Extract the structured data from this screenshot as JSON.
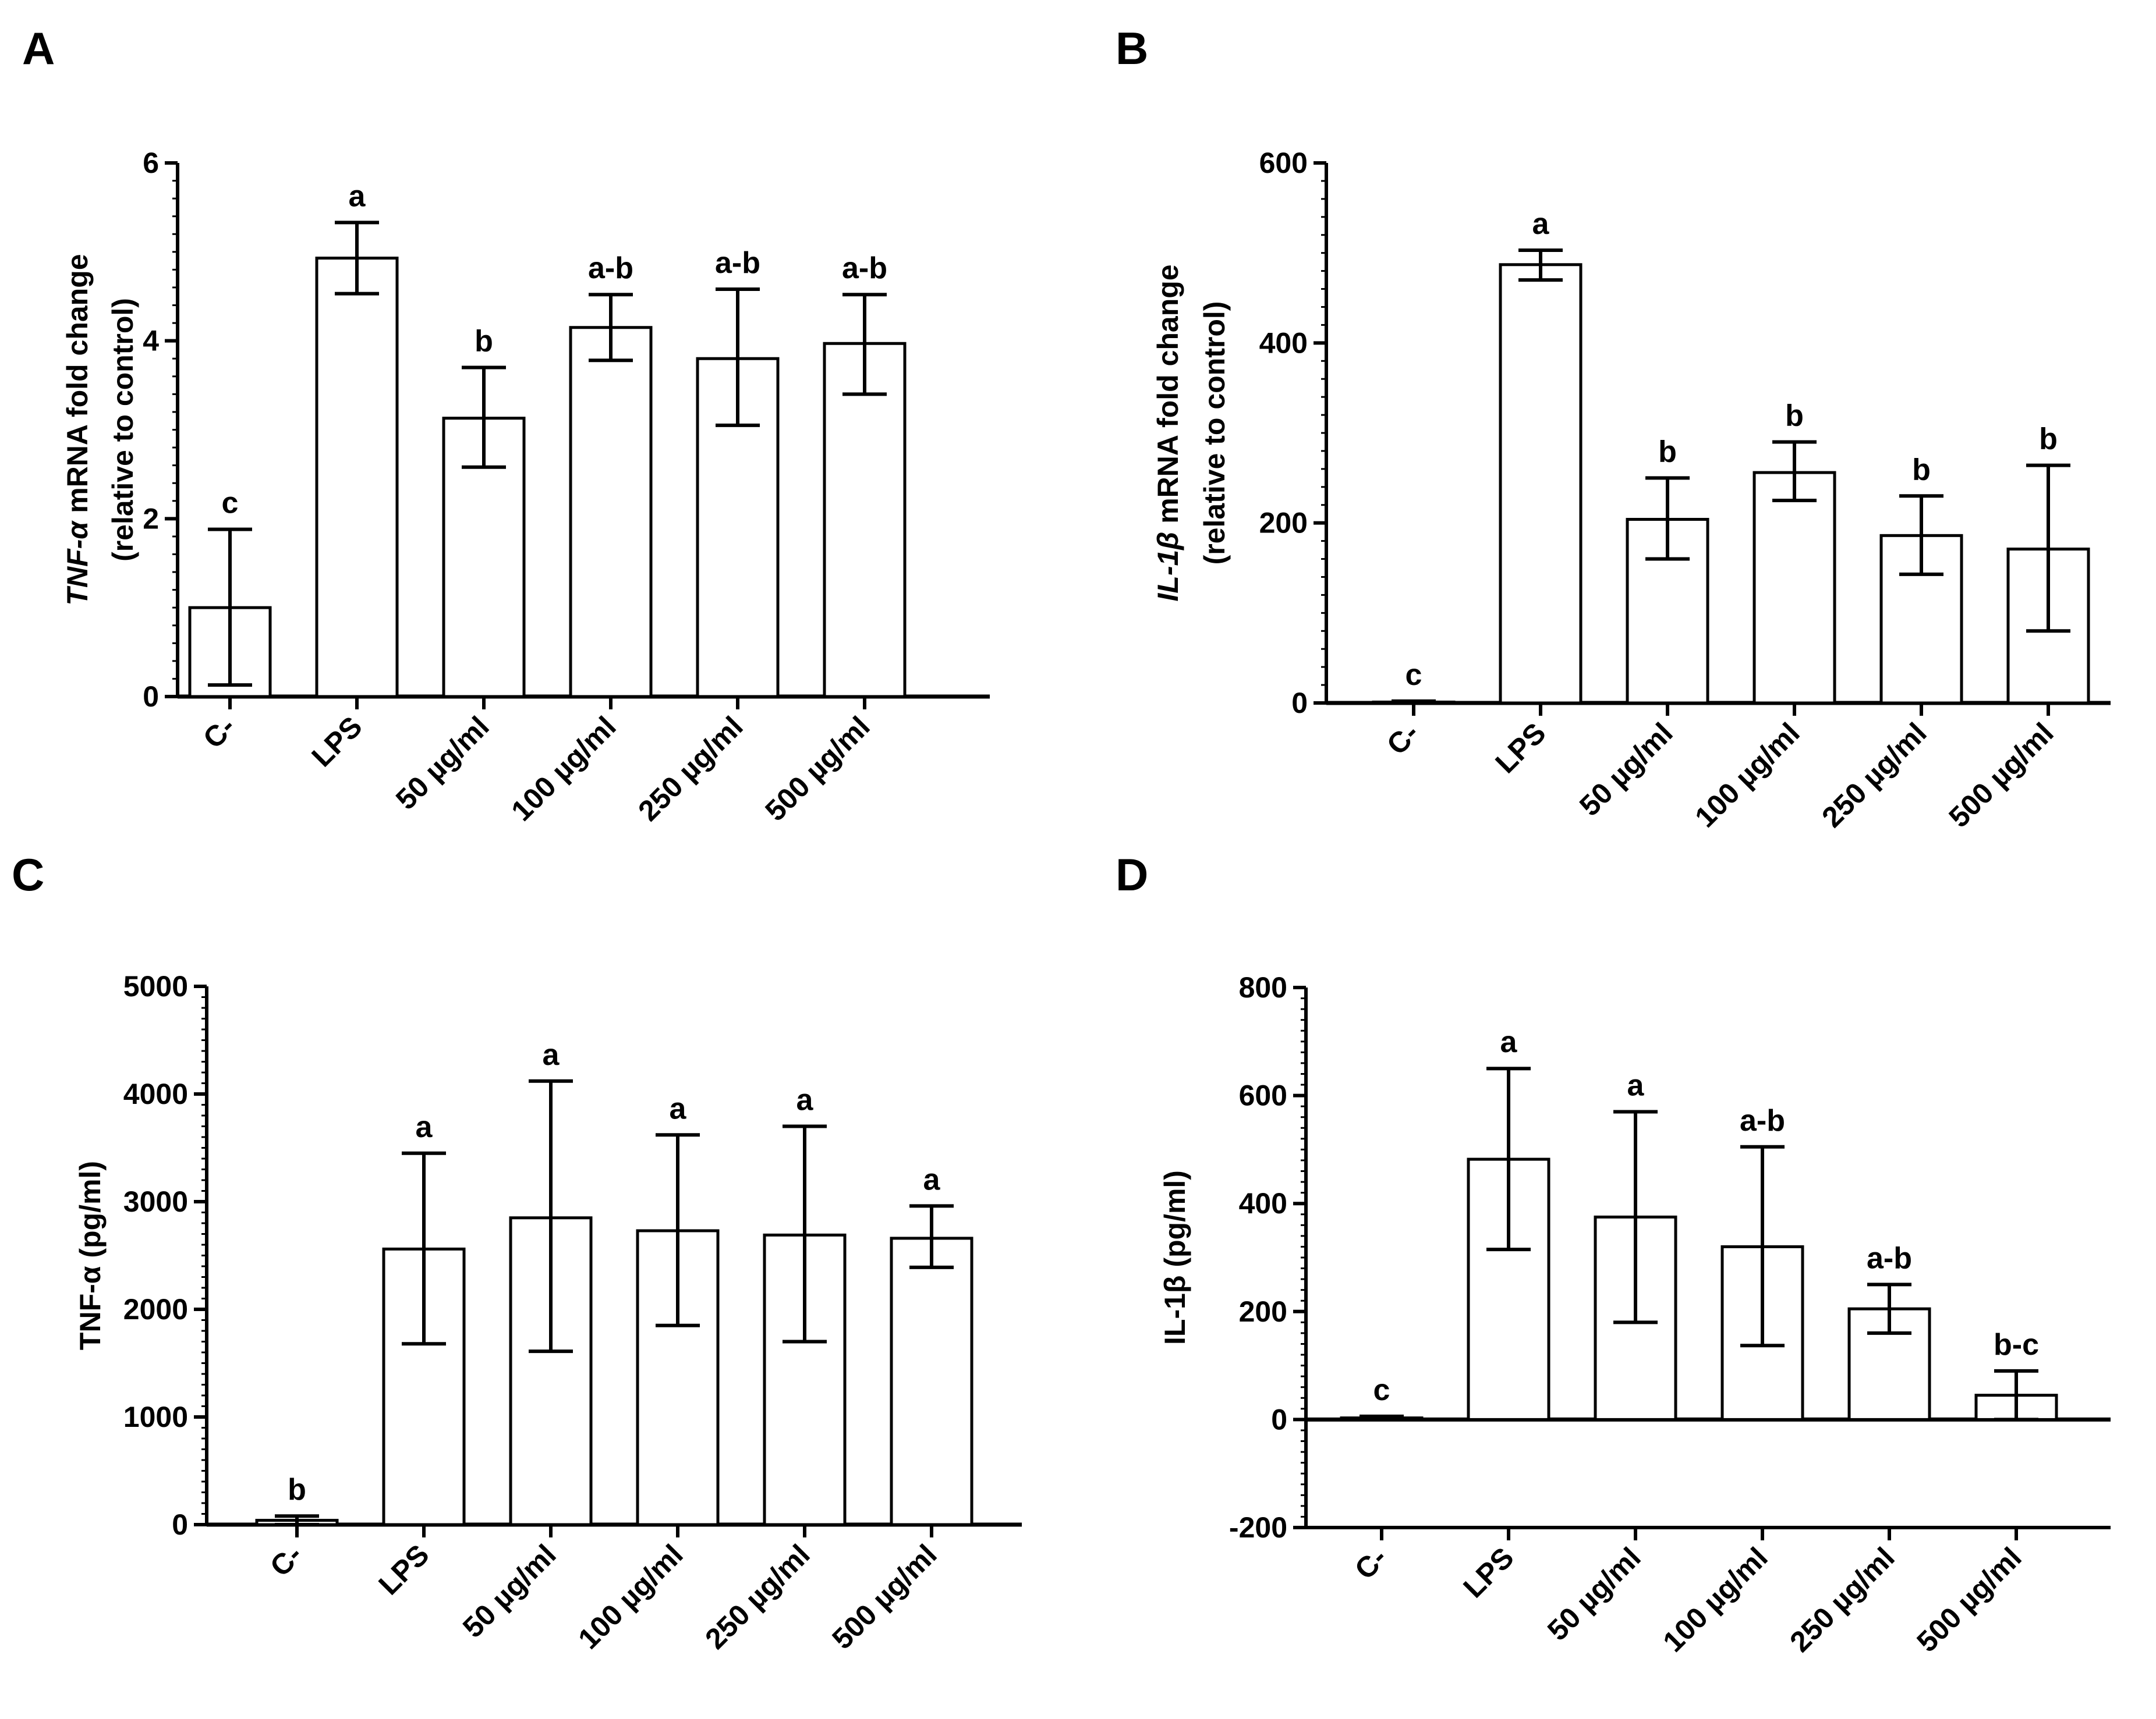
{
  "chart_data": [
    {
      "panel": "A",
      "type": "bar",
      "ylabel_line1": [
        {
          "text": "TNF-α",
          "italic": true
        },
        {
          "text": " mRNA fold change",
          "italic": false
        }
      ],
      "ylabel_line2": "(relative to control)",
      "ylim": [
        0,
        6
      ],
      "yticks": [
        0,
        2,
        4,
        6
      ],
      "categories": [
        "C-",
        "LPS",
        "50 µg/ml",
        "100 µg/ml",
        "250 µg/ml",
        "500 µg/ml"
      ],
      "values": [
        1.0,
        4.93,
        3.13,
        4.15,
        3.8,
        3.97
      ],
      "err_low": [
        0.13,
        4.53,
        2.58,
        3.78,
        3.05,
        3.4
      ],
      "err_high": [
        1.88,
        5.33,
        3.7,
        4.52,
        4.58,
        4.52
      ],
      "letters": [
        "c",
        "a",
        "b",
        "a-b",
        "a-b",
        "a-b"
      ]
    },
    {
      "panel": "B",
      "type": "bar",
      "ylabel_line1": [
        {
          "text": "IL-1β",
          "italic": true
        },
        {
          "text": " mRNA fold change",
          "italic": false
        }
      ],
      "ylabel_line2": "(relative to control)",
      "ylim": [
        0,
        600
      ],
      "yticks": [
        0,
        200,
        400,
        600
      ],
      "categories": [
        "C-",
        "LPS",
        "50 µg/ml",
        "100 µg/ml",
        "250 µg/ml",
        "500 µg/ml"
      ],
      "values": [
        1,
        487,
        204,
        256,
        186,
        171
      ],
      "err_low": [
        0,
        470,
        160,
        225,
        143,
        80
      ],
      "err_high": [
        2,
        503,
        250,
        290,
        230,
        264
      ],
      "letters": [
        "c",
        "a",
        "b",
        "b",
        "b",
        "b"
      ]
    },
    {
      "panel": "C",
      "type": "bar",
      "ylabel_line1": [
        {
          "text": "TNF-α (pg/ml)",
          "italic": false
        }
      ],
      "ylabel_line2": "",
      "ylim": [
        0,
        5000
      ],
      "yticks": [
        0,
        1000,
        2000,
        3000,
        4000,
        5000
      ],
      "categories": [
        "C-",
        "LPS",
        "50 µg/ml",
        "100 µg/ml",
        "250 µg/ml",
        "500 µg/ml"
      ],
      "values": [
        40,
        2560,
        2850,
        2730,
        2690,
        2660
      ],
      "err_low": [
        0,
        1680,
        1610,
        1850,
        1700,
        2390
      ],
      "err_high": [
        80,
        3450,
        4120,
        3620,
        3700,
        2960
      ],
      "letters": [
        "b",
        "a",
        "a",
        "a",
        "a",
        "a"
      ]
    },
    {
      "panel": "D",
      "type": "bar",
      "ylabel_line1": [
        {
          "text": "IL-1β (pg/ml)",
          "italic": false
        }
      ],
      "ylabel_line2": "",
      "ylim": [
        -200,
        800
      ],
      "yticks": [
        -200,
        0,
        200,
        400,
        600,
        800
      ],
      "categories": [
        "C-",
        "LPS",
        "50 µg/ml",
        "100 µg/ml",
        "250 µg/ml",
        "500 µg/ml"
      ],
      "values": [
        3,
        482,
        375,
        320,
        205,
        45
      ],
      "err_low": [
        0,
        315,
        180,
        137,
        160,
        0
      ],
      "err_high": [
        6,
        650,
        570,
        505,
        250,
        90
      ],
      "letters": [
        "c",
        "a",
        "a",
        "a-b",
        "a-b",
        "b-c"
      ]
    }
  ]
}
